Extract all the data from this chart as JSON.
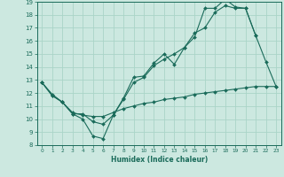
{
  "xlabel": "Humidex (Indice chaleur)",
  "ylabel": "",
  "xlim": [
    -0.5,
    23.5
  ],
  "ylim": [
    8,
    19
  ],
  "yticks": [
    8,
    9,
    10,
    11,
    12,
    13,
    14,
    15,
    16,
    17,
    18,
    19
  ],
  "xticks": [
    0,
    1,
    2,
    3,
    4,
    5,
    6,
    7,
    8,
    9,
    10,
    11,
    12,
    13,
    14,
    15,
    16,
    17,
    18,
    19,
    20,
    21,
    22,
    23
  ],
  "bg_color": "#cce8e0",
  "line_color": "#1a6b5a",
  "grid_color": "#aad4c8",
  "line1": {
    "x": [
      0,
      1,
      2,
      3,
      4,
      5,
      6,
      7,
      8,
      9,
      10,
      11,
      12,
      13,
      14,
      15,
      16,
      17,
      18,
      19,
      20,
      21,
      22,
      23
    ],
    "y": [
      12.8,
      11.8,
      11.3,
      10.4,
      10.0,
      8.7,
      8.5,
      10.3,
      11.6,
      13.2,
      13.3,
      14.3,
      15.0,
      14.2,
      15.5,
      16.3,
      18.5,
      18.5,
      19.2,
      18.6,
      18.5,
      16.4,
      14.4,
      12.5
    ]
  },
  "line2": {
    "x": [
      0,
      1,
      2,
      3,
      4,
      5,
      6,
      7,
      8,
      9,
      10,
      11,
      12,
      13,
      14,
      15,
      16,
      17,
      18,
      19,
      20,
      21
    ],
    "y": [
      12.8,
      11.9,
      11.3,
      10.4,
      10.4,
      9.8,
      9.6,
      10.3,
      11.5,
      12.8,
      13.2,
      14.1,
      14.6,
      15.0,
      15.5,
      16.6,
      17.0,
      18.2,
      18.7,
      18.5,
      18.5,
      16.4
    ]
  },
  "line3": {
    "x": [
      0,
      1,
      2,
      3,
      4,
      5,
      6,
      7,
      8,
      9,
      10,
      11,
      12,
      13,
      14,
      15,
      16,
      17,
      18,
      19,
      20,
      21,
      22,
      23
    ],
    "y": [
      12.8,
      11.8,
      11.3,
      10.5,
      10.3,
      10.2,
      10.2,
      10.5,
      10.8,
      11.0,
      11.2,
      11.3,
      11.5,
      11.6,
      11.7,
      11.9,
      12.0,
      12.1,
      12.2,
      12.3,
      12.4,
      12.5,
      12.5,
      12.5
    ]
  }
}
